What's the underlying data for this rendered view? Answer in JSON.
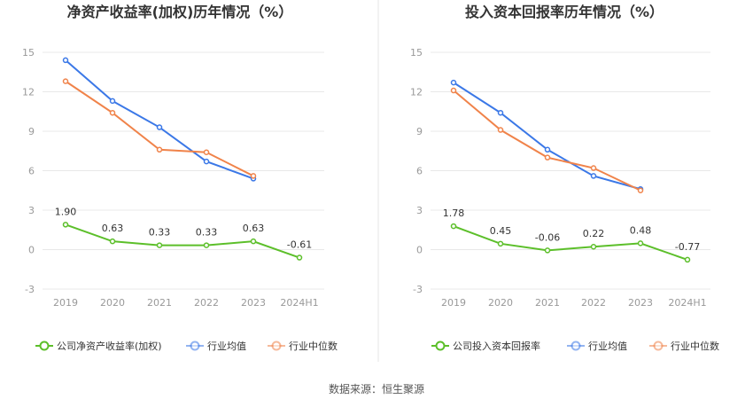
{
  "colors": {
    "company": "#5cbf2a",
    "industry_avg": "#3b78e7",
    "industry_median": "#f0834a",
    "grid": "#e8e8e8",
    "divider": "#e6e6e6"
  },
  "source_text": "数据来源：恒生聚源",
  "chart_data": [
    {
      "type": "line",
      "title": "净资产收益率(加权)历年情况（%）",
      "categories": [
        "2019",
        "2020",
        "2021",
        "2022",
        "2023",
        "2024H1"
      ],
      "ylim": [
        -3,
        15
      ],
      "yticks": [
        "-3",
        "0",
        "3",
        "6",
        "9",
        "12",
        "15"
      ],
      "grid": true,
      "legend_position": "bottom",
      "series": [
        {
          "name": "公司净资产收益率(加权)",
          "key": "company",
          "values": [
            1.9,
            0.63,
            0.33,
            0.33,
            0.63,
            -0.61
          ],
          "labels": [
            "1.90",
            "0.63",
            "0.33",
            "0.33",
            "0.63",
            "-0.61"
          ]
        },
        {
          "name": "行业均值",
          "key": "industry_avg",
          "values": [
            14.4,
            11.3,
            9.3,
            6.7,
            5.4,
            null
          ]
        },
        {
          "name": "行业中位数",
          "key": "industry_median",
          "values": [
            12.8,
            10.4,
            7.6,
            7.4,
            5.6,
            null
          ]
        }
      ]
    },
    {
      "type": "line",
      "title": "投入资本回报率历年情况（%）",
      "categories": [
        "2019",
        "2020",
        "2021",
        "2022",
        "2023",
        "2024H1"
      ],
      "ylim": [
        -3,
        15
      ],
      "yticks": [
        "-3",
        "0",
        "3",
        "6",
        "9",
        "12",
        "15"
      ],
      "grid": true,
      "legend_position": "bottom",
      "series": [
        {
          "name": "公司投入资本回报率",
          "key": "company",
          "values": [
            1.78,
            0.45,
            -0.06,
            0.22,
            0.48,
            -0.77
          ],
          "labels": [
            "1.78",
            "0.45",
            "-0.06",
            "0.22",
            "0.48",
            "-0.77"
          ]
        },
        {
          "name": "行业均值",
          "key": "industry_avg",
          "values": [
            12.7,
            10.4,
            7.6,
            5.6,
            4.6,
            null
          ]
        },
        {
          "name": "行业中位数",
          "key": "industry_median",
          "values": [
            12.1,
            9.1,
            7.0,
            6.2,
            4.5,
            null
          ]
        }
      ]
    }
  ]
}
